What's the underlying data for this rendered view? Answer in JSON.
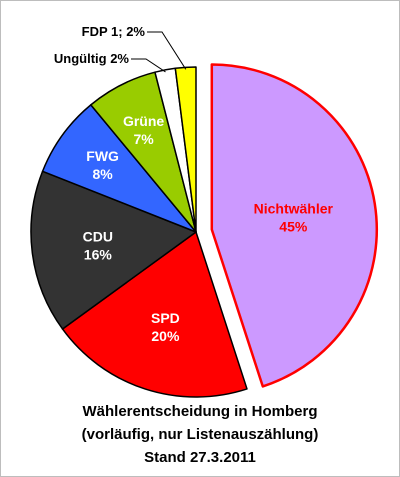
{
  "chart_data": {
    "type": "pie",
    "title_lines": [
      "Wählerentscheidung in Homberg",
      "(vorläufig, nur Listenauszählung)",
      "Stand 27.3.2011"
    ],
    "slices": [
      {
        "name": "Nichtwähler",
        "value": 45,
        "value_label": "45%",
        "color": "#cc99ff",
        "stroke": "#ff0000",
        "label_color": "#ff0000",
        "exploded": true
      },
      {
        "name": "SPD",
        "value": 20,
        "value_label": "20%",
        "color": "#ff0000",
        "stroke": "#000000",
        "label_color": "#ffffff"
      },
      {
        "name": "CDU",
        "value": 16,
        "value_label": "16%",
        "color": "#333333",
        "stroke": "#000000",
        "label_color": "#ffffff"
      },
      {
        "name": "FWG",
        "value": 8,
        "value_label": "8%",
        "color": "#3366ff",
        "stroke": "#000000",
        "label_color": "#ffffff"
      },
      {
        "name": "Grüne",
        "value": 7,
        "value_label": "7%",
        "color": "#99cc00",
        "stroke": "#000000",
        "label_color": "#ffffff"
      },
      {
        "name": "Ungültig",
        "value": 2,
        "value_label": "2%",
        "color": "#ffffff",
        "stroke": "#000000",
        "label_color": "#000000",
        "outside": true
      },
      {
        "name": "FDP 1",
        "value": 2,
        "value_label": "2%",
        "color": "#ffff00",
        "stroke": "#000000",
        "label_color": "#000000",
        "outside": true
      }
    ],
    "outside_labels": {
      "fdp": "FDP 1; 2%",
      "ungueltig": "Ungültig  2%"
    }
  }
}
